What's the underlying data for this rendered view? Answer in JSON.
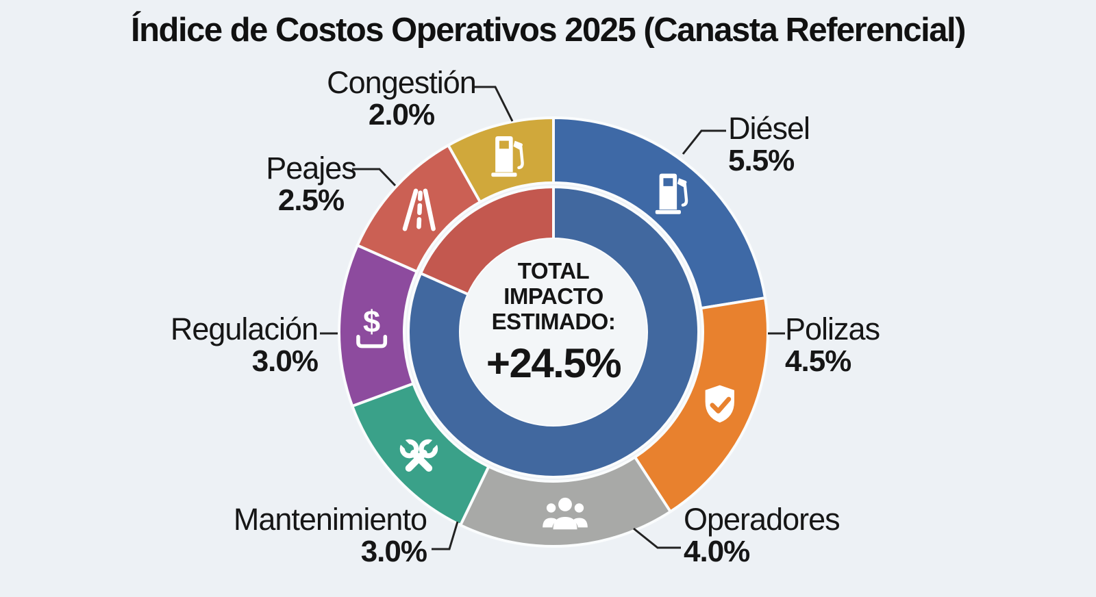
{
  "title": "Índice de Costos Operativos 2025 (Canasta Referencial)",
  "colors": {
    "background": "#edf1f5",
    "text": "#161616",
    "callout_line": "#222222",
    "ring_separator": "#fafcfd",
    "center_circle": "#f3f6f8"
  },
  "chart_data": {
    "type": "pie",
    "variant": "donut",
    "title": "Índice de Costos Operativos 2025 (Canasta Referencial)",
    "units": "percent",
    "total": 24.5,
    "center_lines": [
      "TOTAL",
      "IMPACTO",
      "ESTIMADO:"
    ],
    "center_value": "+24.5%",
    "segments": [
      {
        "label": "Diésel",
        "value": 5.5,
        "display_value": "5.5%",
        "color": "#3e69a6",
        "icon": "fuel-pump-icon"
      },
      {
        "label": "Polizas",
        "value": 4.5,
        "display_value": "4.5%",
        "color": "#e8812e",
        "icon": "shield-check-icon"
      },
      {
        "label": "Operadores",
        "value": 4.0,
        "display_value": "4.0%",
        "color": "#a8a9a7",
        "icon": "people-icon"
      },
      {
        "label": "Mantenimiento",
        "value": 3.0,
        "display_value": "3.0%",
        "color": "#3aa189",
        "icon": "wrenches-icon"
      },
      {
        "label": "Regulación",
        "value": 3.0,
        "display_value": "3.0%",
        "color": "#8d4b9e",
        "icon": "dollar-icon"
      },
      {
        "label": "Peajes",
        "value": 2.5,
        "display_value": "2.5%",
        "color": "#cb6054",
        "icon": "road-icon"
      },
      {
        "label": "Congestión",
        "value": 2.0,
        "display_value": "2.0%",
        "color": "#d0a83b",
        "icon": "fuel-pump-icon"
      }
    ],
    "inner_ring": {
      "note": "two-tone inner ring inside the segmented ring",
      "segments": [
        {
          "name": "blue-arc",
          "value": 20.0,
          "color": "#41689f"
        },
        {
          "name": "red-arc",
          "value": 4.5,
          "color": "#c3584f"
        }
      ]
    },
    "legend": "none (direct labels with callout lines)"
  }
}
